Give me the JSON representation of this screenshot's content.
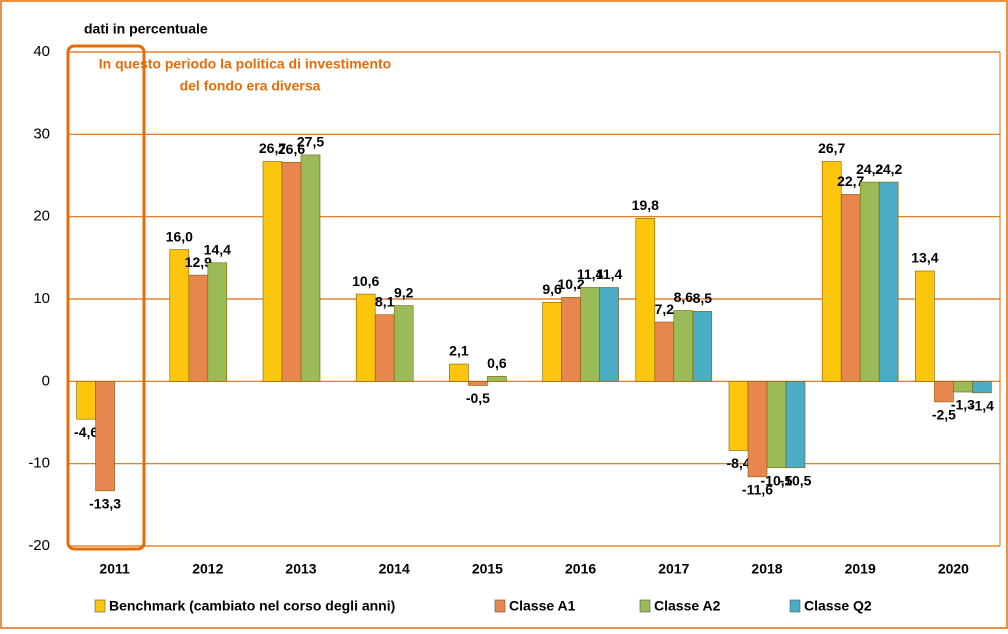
{
  "chart_data": {
    "type": "bar",
    "subtitle": "dati in percentuale",
    "annotation": [
      "In questo periodo la politica di investimento",
      "del fondo era diversa"
    ],
    "categories": [
      "2011",
      "2012",
      "2013",
      "2014",
      "2015",
      "2016",
      "2017",
      "2018",
      "2019",
      "2020"
    ],
    "series": [
      {
        "name": "Benchmark (cambiato nel corso degli anni)",
        "color": "#fcc60f",
        "values": [
          -4.6,
          16.0,
          26.7,
          10.6,
          2.1,
          9.6,
          19.8,
          -8.4,
          26.7,
          13.4
        ],
        "value_labels": [
          "-4,6",
          "16,0",
          "26,7",
          "10,6",
          "2,1",
          "9,6",
          "19,8",
          "-8,4",
          "26,7",
          "13,4"
        ]
      },
      {
        "name": "Classe A1",
        "color": "#e8864f",
        "values": [
          -13.3,
          12.9,
          26.6,
          8.1,
          -0.5,
          10.2,
          7.2,
          -11.6,
          22.7,
          -2.5
        ],
        "value_labels": [
          "-13,3",
          "12,9",
          "26,6",
          "8,1",
          "-0,5",
          "10,2",
          "7,2",
          "-11,6",
          "22,7",
          "-2,5"
        ]
      },
      {
        "name": "Classe A2",
        "color": "#9bbb59",
        "values": [
          null,
          14.4,
          27.5,
          9.2,
          0.6,
          11.4,
          8.6,
          -10.5,
          24.2,
          -1.3
        ],
        "value_labels": [
          null,
          "14,4",
          "27,5",
          "9,2",
          "0,6",
          "11,4",
          "8,6",
          "-10,5",
          "24,2",
          "-1,3"
        ]
      },
      {
        "name": "Classe Q2",
        "color": "#4bacc6",
        "values": [
          null,
          null,
          null,
          null,
          null,
          11.4,
          8.5,
          -10.5,
          24.2,
          -1.4
        ],
        "value_labels": [
          null,
          null,
          null,
          null,
          null,
          "11,4",
          "8,5",
          "-10,5",
          "24,2",
          "-1,4"
        ]
      }
    ],
    "ylim": [
      -20,
      40
    ],
    "yticks": [
      -20,
      -10,
      0,
      10,
      20,
      30,
      40
    ],
    "grid": true,
    "legend": "bottom"
  }
}
